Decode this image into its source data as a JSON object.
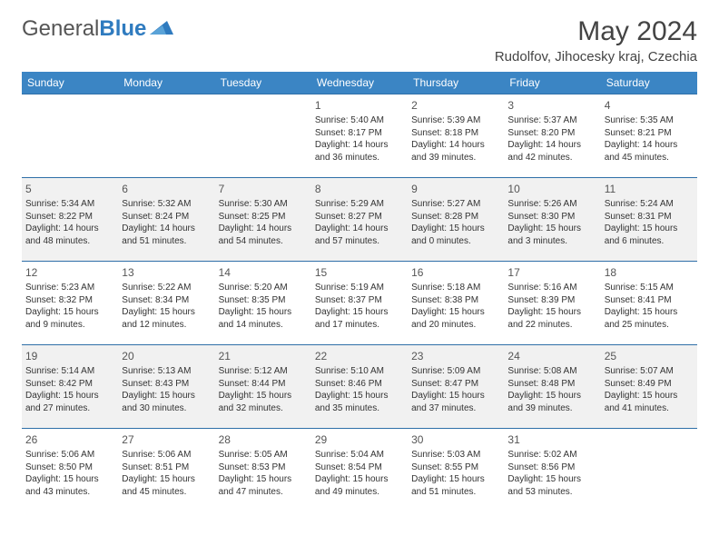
{
  "brand": {
    "name_gray": "General",
    "name_blue": "Blue"
  },
  "title": "May 2024",
  "location": "Rudolfov, Jihocesky kraj, Czechia",
  "colors": {
    "header_bg": "#3b85c4",
    "row_alt_bg": "#f1f1f1",
    "cell_border": "#2f6fa8",
    "text": "#333333",
    "title_text": "#444444",
    "logo_gray": "#555555",
    "logo_blue": "#2f7bbf"
  },
  "dow": [
    "Sunday",
    "Monday",
    "Tuesday",
    "Wednesday",
    "Thursday",
    "Friday",
    "Saturday"
  ],
  "weeks": [
    [
      null,
      null,
      null,
      {
        "n": "1",
        "sr": "5:40 AM",
        "ss": "8:17 PM",
        "dl": "14 hours and 36 minutes."
      },
      {
        "n": "2",
        "sr": "5:39 AM",
        "ss": "8:18 PM",
        "dl": "14 hours and 39 minutes."
      },
      {
        "n": "3",
        "sr": "5:37 AM",
        "ss": "8:20 PM",
        "dl": "14 hours and 42 minutes."
      },
      {
        "n": "4",
        "sr": "5:35 AM",
        "ss": "8:21 PM",
        "dl": "14 hours and 45 minutes."
      }
    ],
    [
      {
        "n": "5",
        "sr": "5:34 AM",
        "ss": "8:22 PM",
        "dl": "14 hours and 48 minutes."
      },
      {
        "n": "6",
        "sr": "5:32 AM",
        "ss": "8:24 PM",
        "dl": "14 hours and 51 minutes."
      },
      {
        "n": "7",
        "sr": "5:30 AM",
        "ss": "8:25 PM",
        "dl": "14 hours and 54 minutes."
      },
      {
        "n": "8",
        "sr": "5:29 AM",
        "ss": "8:27 PM",
        "dl": "14 hours and 57 minutes."
      },
      {
        "n": "9",
        "sr": "5:27 AM",
        "ss": "8:28 PM",
        "dl": "15 hours and 0 minutes."
      },
      {
        "n": "10",
        "sr": "5:26 AM",
        "ss": "8:30 PM",
        "dl": "15 hours and 3 minutes."
      },
      {
        "n": "11",
        "sr": "5:24 AM",
        "ss": "8:31 PM",
        "dl": "15 hours and 6 minutes."
      }
    ],
    [
      {
        "n": "12",
        "sr": "5:23 AM",
        "ss": "8:32 PM",
        "dl": "15 hours and 9 minutes."
      },
      {
        "n": "13",
        "sr": "5:22 AM",
        "ss": "8:34 PM",
        "dl": "15 hours and 12 minutes."
      },
      {
        "n": "14",
        "sr": "5:20 AM",
        "ss": "8:35 PM",
        "dl": "15 hours and 14 minutes."
      },
      {
        "n": "15",
        "sr": "5:19 AM",
        "ss": "8:37 PM",
        "dl": "15 hours and 17 minutes."
      },
      {
        "n": "16",
        "sr": "5:18 AM",
        "ss": "8:38 PM",
        "dl": "15 hours and 20 minutes."
      },
      {
        "n": "17",
        "sr": "5:16 AM",
        "ss": "8:39 PM",
        "dl": "15 hours and 22 minutes."
      },
      {
        "n": "18",
        "sr": "5:15 AM",
        "ss": "8:41 PM",
        "dl": "15 hours and 25 minutes."
      }
    ],
    [
      {
        "n": "19",
        "sr": "5:14 AM",
        "ss": "8:42 PM",
        "dl": "15 hours and 27 minutes."
      },
      {
        "n": "20",
        "sr": "5:13 AM",
        "ss": "8:43 PM",
        "dl": "15 hours and 30 minutes."
      },
      {
        "n": "21",
        "sr": "5:12 AM",
        "ss": "8:44 PM",
        "dl": "15 hours and 32 minutes."
      },
      {
        "n": "22",
        "sr": "5:10 AM",
        "ss": "8:46 PM",
        "dl": "15 hours and 35 minutes."
      },
      {
        "n": "23",
        "sr": "5:09 AM",
        "ss": "8:47 PM",
        "dl": "15 hours and 37 minutes."
      },
      {
        "n": "24",
        "sr": "5:08 AM",
        "ss": "8:48 PM",
        "dl": "15 hours and 39 minutes."
      },
      {
        "n": "25",
        "sr": "5:07 AM",
        "ss": "8:49 PM",
        "dl": "15 hours and 41 minutes."
      }
    ],
    [
      {
        "n": "26",
        "sr": "5:06 AM",
        "ss": "8:50 PM",
        "dl": "15 hours and 43 minutes."
      },
      {
        "n": "27",
        "sr": "5:06 AM",
        "ss": "8:51 PM",
        "dl": "15 hours and 45 minutes."
      },
      {
        "n": "28",
        "sr": "5:05 AM",
        "ss": "8:53 PM",
        "dl": "15 hours and 47 minutes."
      },
      {
        "n": "29",
        "sr": "5:04 AM",
        "ss": "8:54 PM",
        "dl": "15 hours and 49 minutes."
      },
      {
        "n": "30",
        "sr": "5:03 AM",
        "ss": "8:55 PM",
        "dl": "15 hours and 51 minutes."
      },
      {
        "n": "31",
        "sr": "5:02 AM",
        "ss": "8:56 PM",
        "dl": "15 hours and 53 minutes."
      },
      null
    ]
  ],
  "labels": {
    "sunrise": "Sunrise: ",
    "sunset": "Sunset: ",
    "daylight": "Daylight: "
  }
}
